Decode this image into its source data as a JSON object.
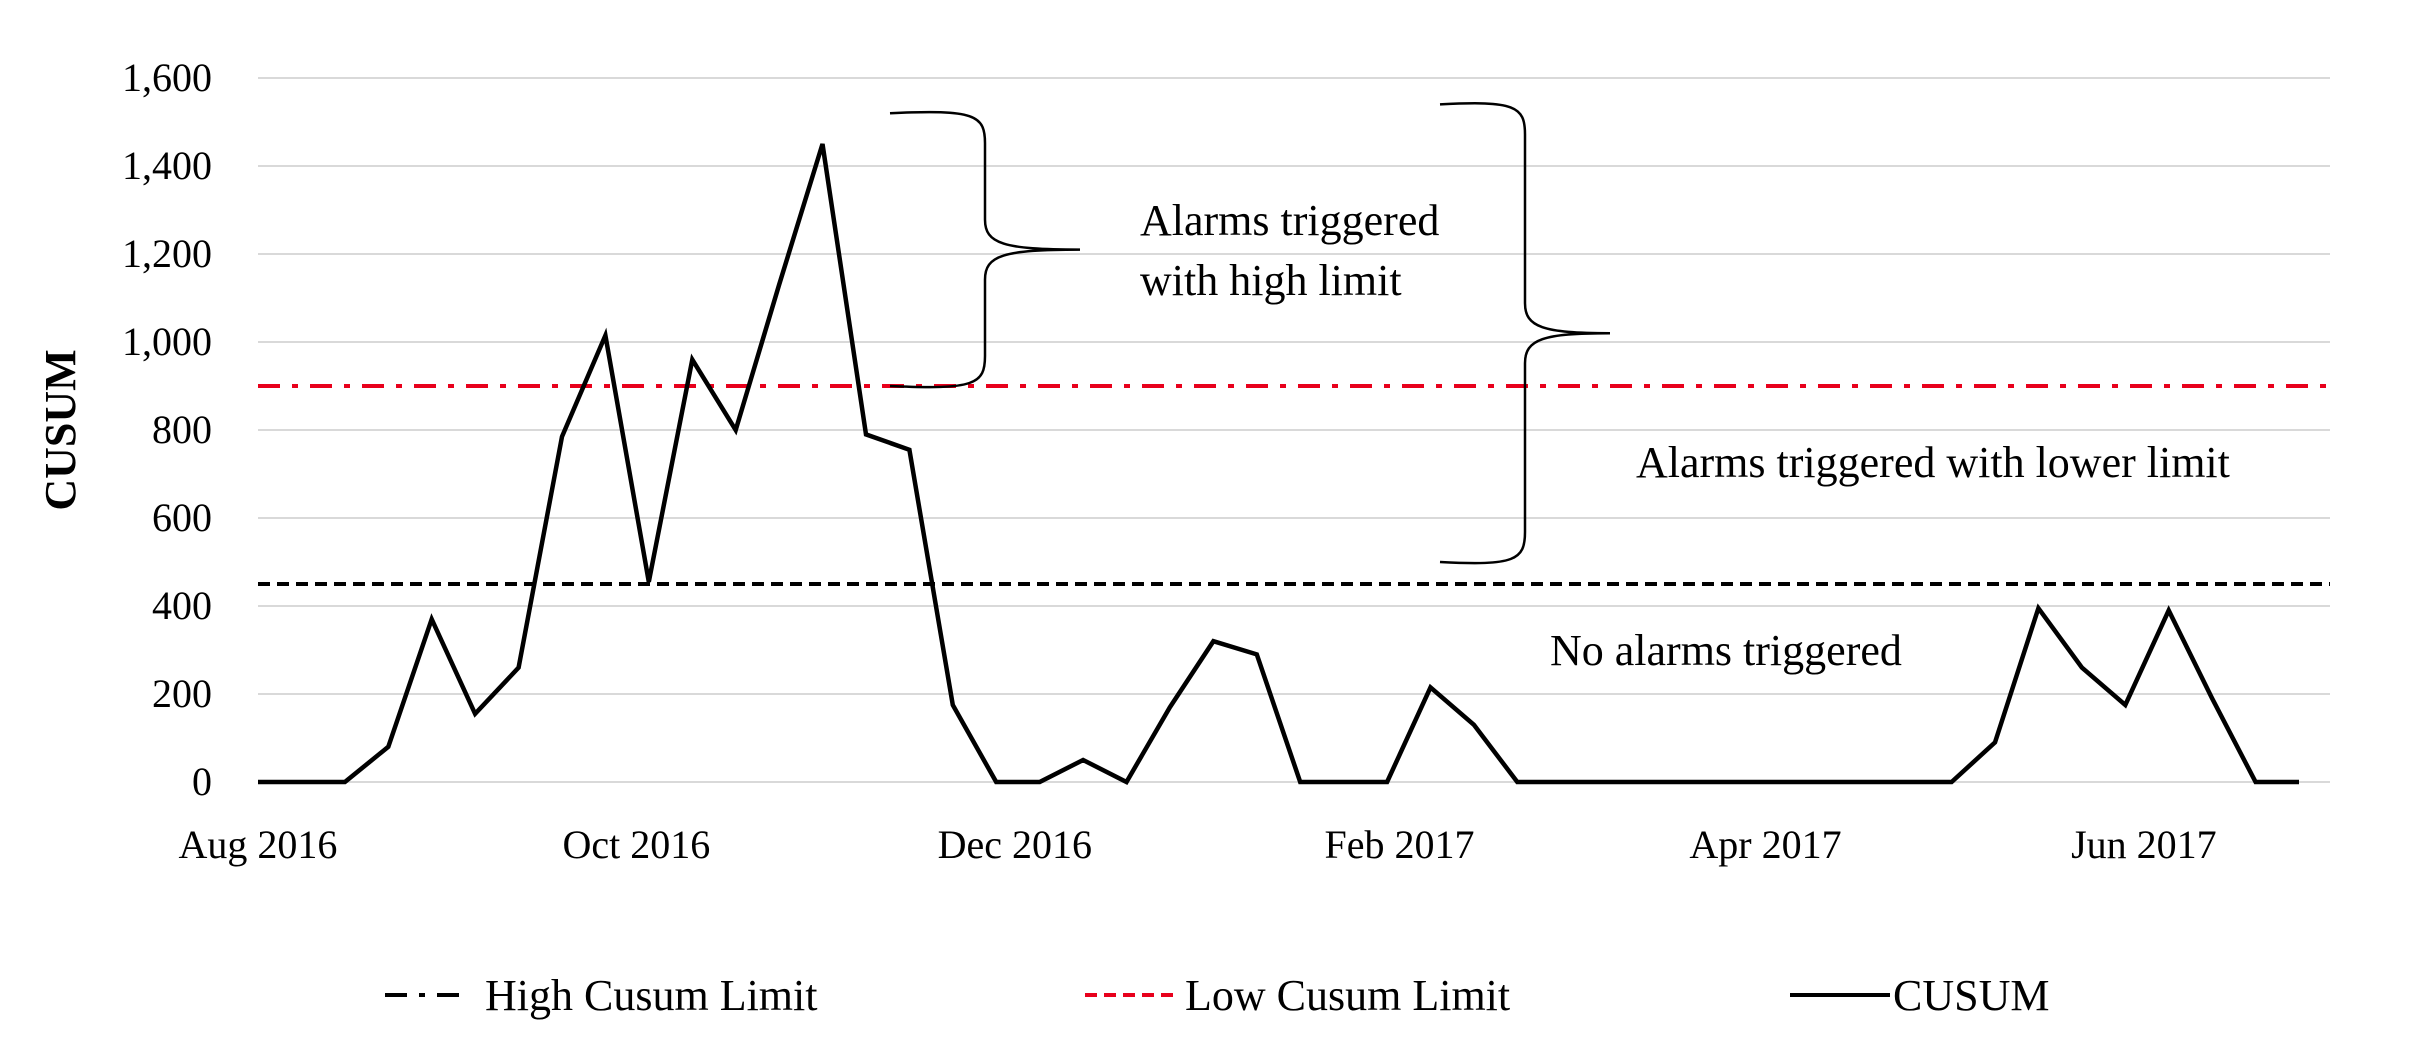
{
  "chart_data": {
    "type": "line",
    "title": "",
    "xlabel": "",
    "ylabel": "CUSUM",
    "ylim": [
      0,
      1600
    ],
    "yticks": [
      0,
      200,
      400,
      600,
      800,
      1000,
      1200,
      1400,
      1600
    ],
    "ytick_labels": [
      "0",
      "200",
      "400",
      "600",
      "800",
      "1,000",
      "1,200",
      "1,400",
      "1,600"
    ],
    "xlim": [
      "2016-08-01",
      "2017-07-01"
    ],
    "xticks": [
      {
        "date": "2016-08-01",
        "label": "Aug 2016"
      },
      {
        "date": "2016-10-01",
        "label": "Oct 2016"
      },
      {
        "date": "2016-12-01",
        "label": "Dec 2016"
      },
      {
        "date": "2017-02-01",
        "label": "Feb 2017"
      },
      {
        "date": "2017-04-01",
        "label": "Apr 2017"
      },
      {
        "date": "2017-06-01",
        "label": "Jun 2017"
      }
    ],
    "grid": true,
    "legend_position": "bottom",
    "series": [
      {
        "name": "CUSUM",
        "color": "#000000",
        "style": "solid",
        "x": [
          "2016-08-01",
          "2016-08-08",
          "2016-08-15",
          "2016-08-22",
          "2016-08-29",
          "2016-09-05",
          "2016-09-12",
          "2016-09-19",
          "2016-09-26",
          "2016-10-03",
          "2016-10-10",
          "2016-10-17",
          "2016-10-24",
          "2016-10-31",
          "2016-11-07",
          "2016-11-14",
          "2016-11-21",
          "2016-11-28",
          "2016-12-05",
          "2016-12-12",
          "2016-12-19",
          "2016-12-26",
          "2017-01-02",
          "2017-01-09",
          "2017-01-16",
          "2017-01-23",
          "2017-01-30",
          "2017-02-06",
          "2017-02-13",
          "2017-02-20",
          "2017-02-27",
          "2017-03-06",
          "2017-03-13",
          "2017-03-20",
          "2017-03-27",
          "2017-04-03",
          "2017-04-10",
          "2017-04-17",
          "2017-04-24",
          "2017-05-01",
          "2017-05-08",
          "2017-05-15",
          "2017-05-22",
          "2017-05-29",
          "2017-06-05",
          "2017-06-12",
          "2017-06-19",
          "2017-06-26"
        ],
        "y": [
          0,
          0,
          0,
          80,
          370,
          155,
          260,
          785,
          1015,
          455,
          960,
          800,
          1130,
          1450,
          790,
          755,
          175,
          0,
          0,
          50,
          0,
          170,
          320,
          290,
          0,
          0,
          0,
          215,
          130,
          0,
          0,
          0,
          0,
          0,
          0,
          0,
          0,
          0,
          0,
          0,
          90,
          395,
          260,
          175,
          390,
          190,
          0,
          0
        ]
      },
      {
        "name": "Low Cusum Limit",
        "color": "#000000",
        "style": "dash-dot",
        "value": 450
      },
      {
        "name": "High Cusum Limit",
        "color": "#e8001c",
        "style": "dashed",
        "value": 900
      }
    ],
    "annotations": [
      {
        "lines": [
          "Alarms triggered",
          "with high limit"
        ],
        "y_range": [
          900,
          1520
        ]
      },
      {
        "lines": [
          "Alarms triggered with lower limit"
        ],
        "y_range": [
          500,
          1540
        ]
      },
      {
        "lines": [
          "No alarms triggered"
        ]
      }
    ]
  }
}
